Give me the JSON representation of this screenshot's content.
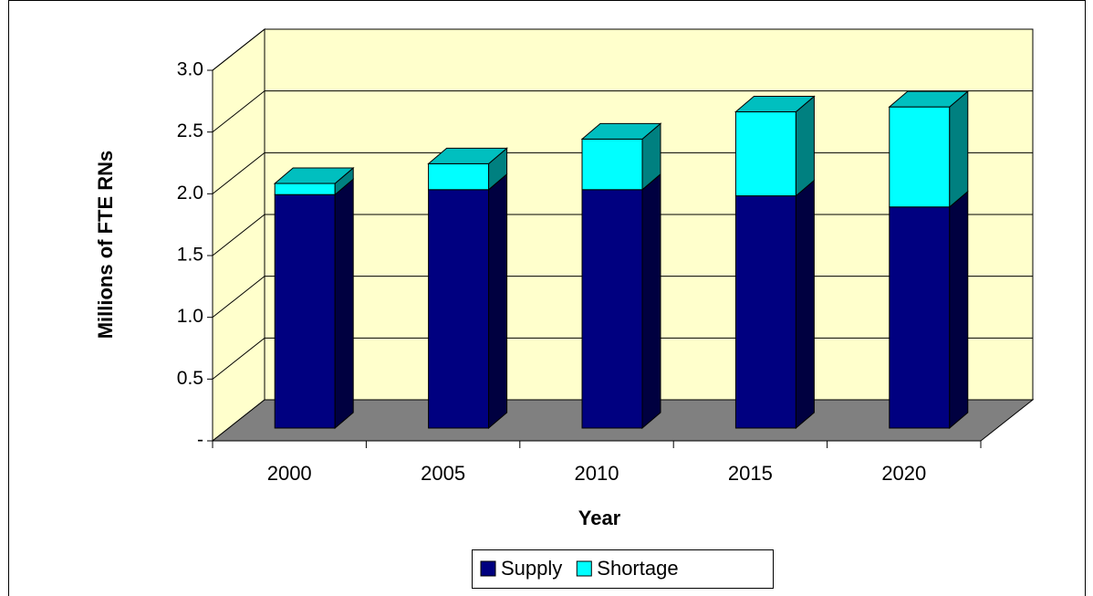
{
  "chart_data": {
    "type": "bar3d_stacked",
    "x_label": "Year",
    "y_label": "Millions of FTE RNs",
    "categories": [
      "2000",
      "2005",
      "2010",
      "2015",
      "2020"
    ],
    "series": [
      {
        "name": "Supply",
        "color": "#000080",
        "values": [
          1.89,
          1.93,
          1.93,
          1.88,
          1.79
        ]
      },
      {
        "name": "Shortage",
        "color": "#00ffff",
        "values": [
          0.09,
          0.21,
          0.41,
          0.68,
          0.81
        ]
      }
    ],
    "ylim": [
      0,
      3
    ],
    "yticks": [
      {
        "value": 0,
        "label": "-"
      },
      0.5,
      {
        "value": 1,
        "label": "1.0"
      },
      1.5,
      {
        "value": 2,
        "label": "2.0"
      },
      2.5,
      {
        "value": 3,
        "label": "3.0"
      }
    ],
    "grid": true,
    "legend": "bottom"
  }
}
